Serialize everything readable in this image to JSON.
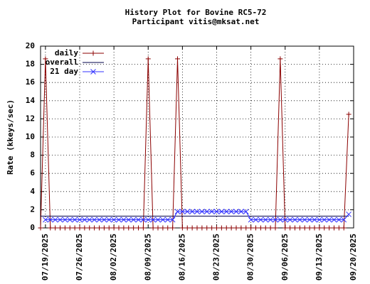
{
  "chart_data": {
    "type": "line",
    "title": "History Plot for Bovine RC5-72",
    "subtitle": "Participant vitis@mksat.net",
    "y_label": "Rate (kkeys/sec)",
    "x": [
      "07/18/2025",
      "07/19/2025",
      "07/20/2025",
      "07/21/2025",
      "07/22/2025",
      "07/23/2025",
      "07/24/2025",
      "07/25/2025",
      "07/26/2025",
      "07/27/2025",
      "07/28/2025",
      "07/29/2025",
      "07/30/2025",
      "07/31/2025",
      "08/01/2025",
      "08/02/2025",
      "08/03/2025",
      "08/04/2025",
      "08/05/2025",
      "08/06/2025",
      "08/07/2025",
      "08/08/2025",
      "08/09/2025",
      "08/10/2025",
      "08/11/2025",
      "08/12/2025",
      "08/13/2025",
      "08/14/2025",
      "08/15/2025",
      "08/16/2025",
      "08/17/2025",
      "08/18/2025",
      "08/19/2025",
      "08/20/2025",
      "08/21/2025",
      "08/22/2025",
      "08/23/2025",
      "08/24/2025",
      "08/25/2025",
      "08/26/2025",
      "08/27/2025",
      "08/28/2025",
      "08/29/2025",
      "08/30/2025",
      "08/31/2025",
      "09/01/2025",
      "09/02/2025",
      "09/03/2025",
      "09/04/2025",
      "09/05/2025",
      "09/06/2025",
      "09/07/2025",
      "09/08/2025",
      "09/09/2025",
      "09/10/2025",
      "09/11/2025",
      "09/12/2025",
      "09/13/2025",
      "09/14/2025",
      "09/15/2025",
      "09/16/2025",
      "09/17/2025",
      "09/18/2025",
      "09/19/2025"
    ],
    "series": [
      {
        "name": "daily",
        "color": "#8b0000",
        "marker": "+",
        "values": [
          0,
          18.6,
          0,
          0,
          0,
          0,
          0,
          0,
          0,
          0,
          0,
          0,
          0,
          0,
          0,
          0,
          0,
          0,
          0,
          0,
          0,
          0,
          18.6,
          0,
          0,
          0,
          0,
          0,
          18.6,
          0,
          0,
          0,
          0,
          0,
          0,
          0,
          0,
          0,
          0,
          0,
          0,
          0,
          0,
          0,
          0,
          0,
          0,
          0,
          0,
          18.6,
          0,
          0,
          0,
          0,
          0,
          0,
          0,
          0,
          0,
          0,
          0,
          0,
          0,
          12.5
        ]
      },
      {
        "name": "overall",
        "color": "#00004a",
        "marker": null,
        "values": [
          1.3,
          1.3,
          1.3,
          1.3,
          1.3,
          1.3,
          1.3,
          1.3,
          1.3,
          1.3,
          1.3,
          1.3,
          1.3,
          1.3,
          1.3,
          1.3,
          1.3,
          1.3,
          1.3,
          1.3,
          1.3,
          1.3,
          1.3,
          1.3,
          1.3,
          1.3,
          1.3,
          1.3,
          1.3,
          1.3,
          1.3,
          1.3,
          1.3,
          1.3,
          1.3,
          1.3,
          1.3,
          1.3,
          1.3,
          1.3,
          1.3,
          1.3,
          1.3,
          1.3,
          1.3,
          1.3,
          1.3,
          1.3,
          1.3,
          1.3,
          1.3,
          1.3,
          1.3,
          1.3,
          1.3,
          1.3,
          1.3,
          1.3,
          1.3,
          1.3,
          1.3,
          1.3,
          1.3,
          1.3
        ]
      },
      {
        "name": "21 day",
        "color": "#3333ff",
        "marker": "x",
        "values": [
          null,
          0.9,
          0.9,
          0.9,
          0.9,
          0.9,
          0.9,
          0.9,
          0.9,
          0.9,
          0.9,
          0.9,
          0.9,
          0.9,
          0.9,
          0.9,
          0.9,
          0.9,
          0.9,
          0.9,
          0.9,
          0.9,
          0.9,
          0.9,
          0.9,
          0.9,
          0.9,
          0.9,
          1.8,
          1.8,
          1.8,
          1.8,
          1.8,
          1.8,
          1.8,
          1.8,
          1.8,
          1.8,
          1.8,
          1.8,
          1.8,
          1.8,
          1.8,
          0.9,
          0.9,
          0.9,
          0.9,
          0.9,
          0.9,
          0.9,
          0.9,
          0.9,
          0.9,
          0.9,
          0.9,
          0.9,
          0.9,
          0.9,
          0.9,
          0.9,
          0.9,
          0.9,
          0.9,
          1.5
        ]
      }
    ],
    "xlim": [
      "07/18/2025",
      "09/20/2025"
    ],
    "xticks": [
      "07/19/2025",
      "07/26/2025",
      "08/02/2025",
      "08/09/2025",
      "08/16/2025",
      "08/23/2025",
      "08/30/2025",
      "09/06/2025",
      "09/13/2025",
      "09/20/2025"
    ],
    "ylim": [
      0,
      20
    ],
    "yticks": [
      0,
      2,
      4,
      6,
      8,
      10,
      12,
      14,
      16,
      18,
      20
    ],
    "grid": true,
    "legend": "upper left"
  }
}
